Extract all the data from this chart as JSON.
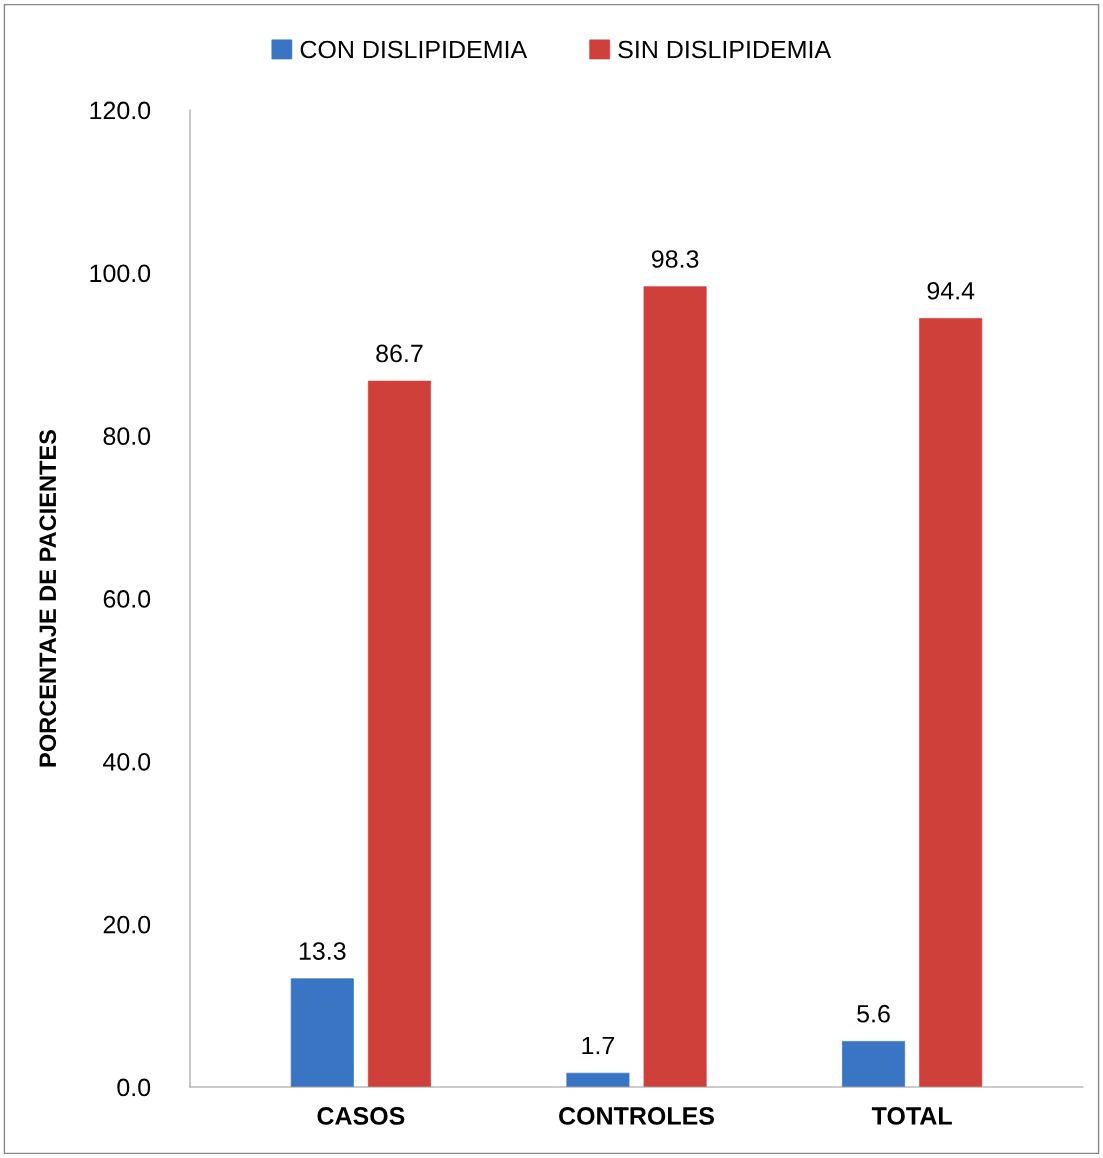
{
  "chart_data": {
    "type": "bar",
    "ylabel": "PORCENTAJE DE PACIENTES",
    "categories": [
      "CASOS",
      "CONTROLES",
      "TOTAL"
    ],
    "series": [
      {
        "name": "CON DISLIPIDEMIA",
        "color": "#3a75c4",
        "values": [
          13.3,
          1.7,
          5.6
        ]
      },
      {
        "name": "SIN DISLIPIDEMIA",
        "color": "#d0403b",
        "values": [
          86.7,
          98.3,
          94.4
        ]
      }
    ],
    "ylim": [
      0,
      120
    ],
    "yticks": [
      {
        "value": 0,
        "label": "0.0"
      },
      {
        "value": 20,
        "label": "20.0"
      },
      {
        "value": 40,
        "label": "40.0"
      },
      {
        "value": 60,
        "label": "60.0"
      },
      {
        "value": 80,
        "label": "80.0"
      },
      {
        "value": 100,
        "label": "100.0"
      },
      {
        "value": 120,
        "label": "120.0"
      }
    ],
    "data_labels": true,
    "legend": "top",
    "grid": false
  }
}
